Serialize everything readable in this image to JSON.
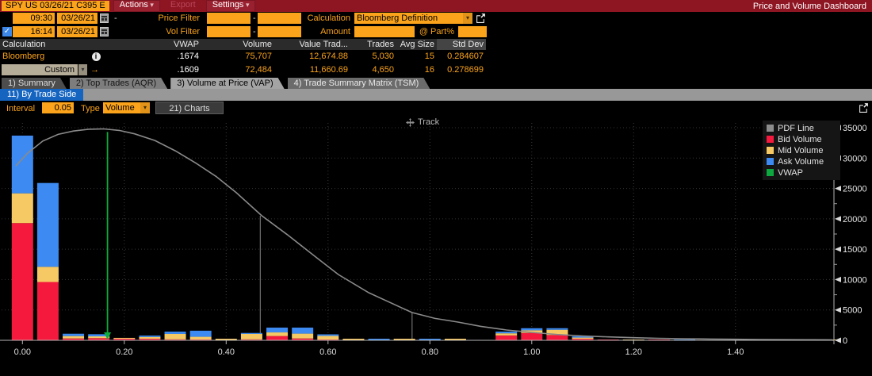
{
  "titlebar": {
    "security": "SPY US 03/26/21 C395 E",
    "menus": [
      {
        "label": "Actions",
        "caret": true,
        "enabled": true
      },
      {
        "label": "Export",
        "caret": false,
        "enabled": false
      },
      {
        "label": "Settings",
        "caret": true,
        "enabled": true
      }
    ],
    "title": "Price and Volume Dashboard"
  },
  "filters": {
    "row1": {
      "time": "09:30",
      "date": "03/26/21",
      "dash": "-",
      "price_filter_label": "Price Filter",
      "price_min": "",
      "range_dash": "-",
      "price_max": "",
      "calculation_label": "Calculation",
      "calculation_value": "Bloomberg Definition"
    },
    "row2": {
      "checkbox_checked": "✓",
      "time": "16:14",
      "date": "03/26/21",
      "vol_filter_label": "Vol Filter",
      "vol_min": "",
      "range_dash": "-",
      "vol_max": "",
      "amount_label": "Amount",
      "amount_value": "",
      "part_label": "@ Part%",
      "part_value": ""
    }
  },
  "table": {
    "headers": [
      "Calculation",
      "",
      "VWAP",
      "Volume",
      "Value Trad...",
      "Trades",
      "Avg Size",
      "Std Dev"
    ],
    "rows": [
      {
        "name": "Bloomberg",
        "vwap": ".1674",
        "volume": "75,707",
        "value_traded": "12,674.88",
        "trades": "5,030",
        "avg_size": "15",
        "std_dev": "0.284607"
      },
      {
        "name": "Custom",
        "vwap": ".1609",
        "volume": "72,484",
        "value_traded": "11,660.69",
        "trades": "4,650",
        "avg_size": "16",
        "std_dev": "0.278699"
      }
    ],
    "custom_row_icon": "→"
  },
  "tabs": [
    {
      "label": "1) Summary",
      "active": false
    },
    {
      "label": "2) Top Trades (AQR)",
      "active": false
    },
    {
      "label": "3) Volume at Price (VAP)",
      "active": true
    },
    {
      "label": "4) Trade Summary Matrix (TSM)",
      "active": false
    }
  ],
  "subtab": "11) By Trade Side",
  "controls": {
    "interval_label": "Interval",
    "interval_value": "0.05",
    "type_label": "Type",
    "type_value": "Volume",
    "charts_button": "21) Charts"
  },
  "chart_data": {
    "type": "bar",
    "subtype": "stacked-bars-with-pdf-line",
    "title": "Volume at Price (VAP) - By Trade Side",
    "track_label": "Track",
    "xlim": [
      -0.045,
      1.595
    ],
    "ylim": [
      0,
      35000
    ],
    "x_ticks": [
      0.0,
      0.2,
      0.4,
      0.6,
      0.8,
      1.0,
      1.2,
      1.4
    ],
    "x_tick_labels": [
      "0.00",
      "0.20",
      "0.40",
      "0.60",
      "0.80",
      "1.00",
      "1.20",
      "1.40"
    ],
    "y_ticks": [
      0,
      5000,
      10000,
      15000,
      20000,
      25000,
      30000,
      35000
    ],
    "y_minor_step": 2500,
    "grid": true,
    "interval": 0.05,
    "bar_width": 0.042,
    "legend_position": "top-right",
    "legend": [
      {
        "label": "PDF Line",
        "color": "#8c8c8c"
      },
      {
        "label": "Bid Volume",
        "color": "#f5193d"
      },
      {
        "label": "Mid Volume",
        "color": "#f7c964"
      },
      {
        "label": "Ask Volume",
        "color": "#3d8bf2"
      },
      {
        "label": "VWAP",
        "color": "#0da63f"
      }
    ],
    "series_order": [
      "bid",
      "mid",
      "ask"
    ],
    "colors": {
      "bid": "#f5193d",
      "mid": "#f7c964",
      "ask": "#3d8bf2",
      "pdf": "#8a8a8a",
      "vwap": "#0cac3e",
      "drop": "#707070"
    },
    "bars": [
      {
        "price": 0.0,
        "bid": 19300,
        "mid": 4900,
        "ask": 9500
      },
      {
        "price": 0.05,
        "bid": 9600,
        "mid": 2500,
        "ask": 13800
      },
      {
        "price": 0.1,
        "bid": 300,
        "mid": 400,
        "ask": 380
      },
      {
        "price": 0.15,
        "bid": 350,
        "mid": 300,
        "ask": 350
      },
      {
        "price": 0.2,
        "bid": 250,
        "mid": 150,
        "ask": 0
      },
      {
        "price": 0.25,
        "bid": 250,
        "mid": 300,
        "ask": 230
      },
      {
        "price": 0.3,
        "bid": 150,
        "mid": 900,
        "ask": 375
      },
      {
        "price": 0.35,
        "bid": 100,
        "mid": 450,
        "ask": 1000
      },
      {
        "price": 0.4,
        "bid": 0,
        "mid": 260,
        "ask": 0
      },
      {
        "price": 0.45,
        "bid": 150,
        "mid": 900,
        "ask": 160
      },
      {
        "price": 0.5,
        "bid": 700,
        "mid": 600,
        "ask": 790
      },
      {
        "price": 0.55,
        "bid": 300,
        "mid": 800,
        "ask": 990
      },
      {
        "price": 0.6,
        "bid": 100,
        "mid": 600,
        "ask": 250
      },
      {
        "price": 0.65,
        "bid": 0,
        "mid": 260,
        "ask": 0
      },
      {
        "price": 0.7,
        "bid": 0,
        "mid": 0,
        "ask": 260
      },
      {
        "price": 0.75,
        "bid": 0,
        "mid": 260,
        "ask": 0
      },
      {
        "price": 0.8,
        "bid": 0,
        "mid": 0,
        "ask": 260
      },
      {
        "price": 0.85,
        "bid": 0,
        "mid": 260,
        "ask": 0
      },
      {
        "price": 0.95,
        "bid": 800,
        "mid": 350,
        "ask": 280
      },
      {
        "price": 1.0,
        "bid": 1210,
        "mid": 440,
        "ask": 340
      },
      {
        "price": 1.05,
        "bid": 870,
        "mid": 860,
        "ask": 260
      },
      {
        "price": 1.1,
        "bid": 250,
        "mid": 200,
        "ask": 200
      },
      {
        "price": 1.15,
        "bid": 130,
        "mid": 0,
        "ask": 0
      },
      {
        "price": 1.2,
        "bid": 0,
        "mid": 130,
        "ask": 0
      },
      {
        "price": 1.25,
        "bid": 60,
        "mid": 0,
        "ask": 0
      },
      {
        "price": 1.3,
        "bid": 0,
        "mid": 0,
        "ask": 130
      },
      {
        "price": 1.58,
        "bid": 0,
        "mid": 100,
        "ask": 0
      }
    ],
    "pdf_line": [
      [
        -0.013,
        28700
      ],
      [
        0.01,
        30800
      ],
      [
        0.04,
        32800
      ],
      [
        0.07,
        33900
      ],
      [
        0.1,
        34450
      ],
      [
        0.13,
        34750
      ],
      [
        0.16,
        34800
      ],
      [
        0.19,
        34550
      ],
      [
        0.22,
        34000
      ],
      [
        0.26,
        32900
      ],
      [
        0.3,
        31200
      ],
      [
        0.34,
        29200
      ],
      [
        0.38,
        27000
      ],
      [
        0.42,
        24300
      ],
      [
        0.47,
        20500
      ],
      [
        0.52,
        17400
      ],
      [
        0.58,
        13450
      ],
      [
        0.62,
        10840
      ],
      [
        0.68,
        7840
      ],
      [
        0.72,
        6300
      ],
      [
        0.765,
        4570
      ],
      [
        0.81,
        3600
      ],
      [
        0.855,
        3000
      ],
      [
        0.9,
        2300
      ],
      [
        0.95,
        1700
      ],
      [
        1.0,
        1300
      ],
      [
        1.05,
        950
      ],
      [
        1.1,
        720
      ],
      [
        1.15,
        560
      ],
      [
        1.2,
        430
      ],
      [
        1.25,
        330
      ],
      [
        1.3,
        260
      ],
      [
        1.35,
        210
      ],
      [
        1.4,
        170
      ],
      [
        1.45,
        135
      ],
      [
        1.5,
        110
      ],
      [
        1.55,
        92
      ],
      [
        1.59,
        80
      ]
    ],
    "vwap_marker": {
      "price": 0.167,
      "top": 34300
    },
    "drop_lines": [
      {
        "price": 0.467,
        "top": 20500
      },
      {
        "price": 0.765,
        "top": 4600
      }
    ]
  }
}
